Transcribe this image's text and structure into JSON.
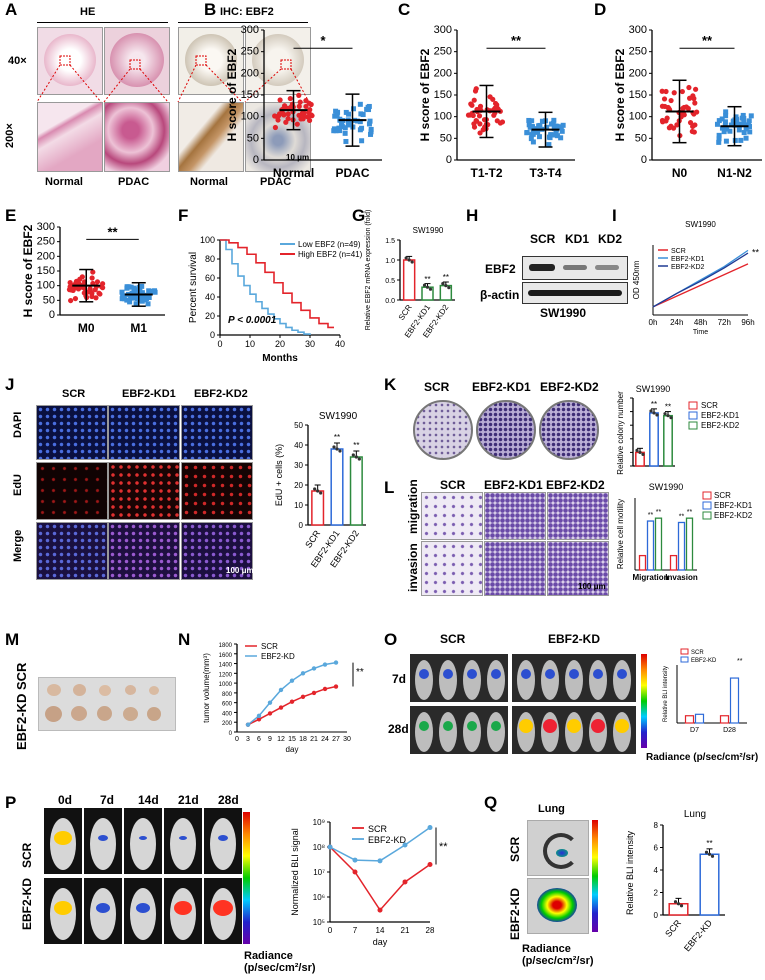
{
  "panels": {
    "A": {
      "letter": "A",
      "hdr_he": "HE",
      "hdr_ihc": "IHC: EBF2",
      "mag1": "40×",
      "mag2": "200×",
      "cols": [
        "Normal",
        "PDAC",
        "Normal",
        "PDAC"
      ],
      "scalebar": "10 μm"
    },
    "B": {
      "letter": "B",
      "ylabel": "H score of EBF2",
      "sig": "*",
      "yticks": [
        "0",
        "50",
        "100",
        "150",
        "200",
        "250",
        "300"
      ]
    },
    "C": {
      "letter": "C",
      "ylabel": "H score of EBF2",
      "sig": "**",
      "yticks": [
        "0",
        "50",
        "100",
        "150",
        "200",
        "250",
        "300"
      ]
    },
    "D": {
      "letter": "D",
      "ylabel": "H score of EBF2",
      "sig": "**",
      "yticks": [
        "0",
        "50",
        "100",
        "150",
        "200",
        "250",
        "300"
      ]
    },
    "E": {
      "letter": "E",
      "ylabel": "H score of EBF2",
      "sig": "**",
      "yticks": [
        "0",
        "50",
        "100",
        "150",
        "200",
        "250",
        "300"
      ]
    },
    "F": {
      "letter": "F",
      "ylabel": "Percent survival",
      "xlabel": "Months",
      "legend_low": "Low EBF2 (n=49)",
      "legend_high": "High EBF2 (n=41)",
      "pval": "P < 0.0001",
      "yticks": [
        "0",
        "20",
        "40",
        "60",
        "80",
        "100"
      ],
      "xticks": [
        "0",
        "10",
        "20",
        "30",
        "40"
      ]
    },
    "G": {
      "letter": "G",
      "title": "SW1990",
      "ylabel": "Relative EBF2 mRNA expression (fold)",
      "cats": [
        "SCR",
        "EBF2-KD1",
        "EBF2-KD2"
      ],
      "sig": "**",
      "yticks": [
        "0.0",
        "0.5",
        "1.0",
        "1.5"
      ]
    },
    "H": {
      "letter": "H",
      "lanes": [
        "SCR",
        "KD1",
        "KD2"
      ],
      "row1": "EBF2",
      "row2": "β-actin",
      "cell": "SW1990"
    },
    "I": {
      "letter": "I",
      "title": "SW1990",
      "ylabel": "OD 450nm",
      "xlabel": "Time",
      "xticks": [
        "0h",
        "24h",
        "48h",
        "72h",
        "96h"
      ],
      "legend": [
        "SCR",
        "EBF2-KD1",
        "EBF2-KD2"
      ],
      "sig": "**"
    },
    "J": {
      "letter": "J",
      "cols": [
        "SCR",
        "EBF2-KD1",
        "EBF2-KD2"
      ],
      "rows": [
        "DAPI",
        "EdU",
        "Merge"
      ],
      "scalebar": "100 μm",
      "title": "SW1990",
      "ylabel": "EdU + cells (%)",
      "sig": "**",
      "yticks": [
        "0",
        "10",
        "20",
        "30",
        "40",
        "50"
      ]
    },
    "K": {
      "letter": "K",
      "cols": [
        "SCR",
        "EBF2-KD1",
        "EBF2-KD2"
      ],
      "title": "SW1990",
      "ylabel": "Relative colony number",
      "legend": [
        "SCR",
        "EBF2-KD1",
        "EBF2-KD2"
      ],
      "sig": "**"
    },
    "L": {
      "letter": "L",
      "cols": [
        "SCR",
        "EBF2-KD1",
        "EBF2-KD2"
      ],
      "rows": [
        "migration",
        "invasion"
      ],
      "scalebar": "100 μm",
      "title": "SW1990",
      "ylabel": "Relative cell motility",
      "groups": [
        "Migration",
        "Invasion"
      ],
      "legend": [
        "SCR",
        "EBF2-KD1",
        "EBF2-KD2"
      ],
      "sig": "**"
    },
    "M": {
      "letter": "M",
      "side": "EBF2-KD SCR"
    },
    "N": {
      "letter": "N",
      "ylabel": "tumor volume(mm³)",
      "xlabel": "day",
      "legend": [
        "SCR",
        "EBF2-KD"
      ],
      "sig": "**",
      "xticks": [
        "0",
        "3",
        "6",
        "9",
        "12",
        "15",
        "18",
        "21",
        "24",
        "27",
        "30"
      ],
      "yticks": [
        "0",
        "200",
        "400",
        "600",
        "800",
        "1000",
        "1200",
        "1400",
        "1600",
        "1800"
      ]
    },
    "O": {
      "letter": "O",
      "cols": [
        "SCR",
        "EBF2-KD"
      ],
      "rows": [
        "7d",
        "28d"
      ],
      "radiance": "Radiance (p/sec/cm²/sr)",
      "ylabel": "Relative BLI intensity",
      "legend": [
        "SCR",
        "EBF2-KD"
      ],
      "sig": "**",
      "xticks": [
        "D7",
        "D28"
      ]
    },
    "P": {
      "letter": "P",
      "days": [
        "0d",
        "7d",
        "14d",
        "21d",
        "28d"
      ],
      "rows": [
        "SCR",
        "EBF2-KD"
      ],
      "radiance": "Radiance (p/sec/cm²/sr)",
      "ylabel": "Normalized BLI signal",
      "xlabel": "day",
      "legend": [
        "SCR",
        "EBF2-KD"
      ],
      "sig": "**",
      "xticks": [
        "0",
        "7",
        "14",
        "21",
        "28"
      ],
      "yticks": [
        "10⁵",
        "10⁶",
        "10⁷",
        "10⁸",
        "10⁹"
      ]
    },
    "Q": {
      "letter": "Q",
      "title": "Lung",
      "rows": [
        "SCR",
        "EBF2-KD"
      ],
      "radiance": "Radiance (p/sec/cm²/sr)",
      "chart_title": "Lung",
      "ylabel": "Relative BLI intensity",
      "cats": [
        "SCR",
        "EBF2-KD"
      ],
      "sig": "**",
      "yticks": [
        "0",
        "2",
        "4",
        "6",
        "8"
      ]
    }
  },
  "chart_data": [
    {
      "type": "scatter",
      "panel": "B",
      "categories": [
        "Normal",
        "PDAC"
      ],
      "mean": [
        115,
        92
      ],
      "sd": [
        45,
        60
      ],
      "ylim": [
        0,
        300
      ]
    },
    {
      "type": "scatter",
      "panel": "C",
      "categories": [
        "T1-T2",
        "T3-T4"
      ],
      "mean": [
        112,
        70
      ],
      "sd": [
        60,
        40
      ],
      "ylim": [
        0,
        300
      ]
    },
    {
      "type": "scatter",
      "panel": "D",
      "categories": [
        "N0",
        "N1-N2"
      ],
      "mean": [
        112,
        78
      ],
      "sd": [
        72,
        45
      ],
      "ylim": [
        0,
        300
      ]
    },
    {
      "type": "scatter",
      "panel": "E",
      "categories": [
        "M0",
        "M1"
      ],
      "mean": [
        100,
        70
      ],
      "sd": [
        55,
        40
      ],
      "ylim": [
        0,
        300
      ]
    },
    {
      "type": "line",
      "panel": "F",
      "series": [
        {
          "name": "Low EBF2 (n=49)",
          "x": [
            0,
            2,
            4,
            6,
            8,
            10,
            12,
            14,
            16,
            18,
            20,
            22,
            24,
            26,
            28,
            30
          ],
          "y": [
            100,
            90,
            75,
            62,
            52,
            43,
            35,
            28,
            22,
            17,
            12,
            8,
            5,
            3,
            1,
            0
          ]
        },
        {
          "name": "High EBF2 (n=41)",
          "x": [
            0,
            3,
            6,
            9,
            12,
            15,
            18,
            21,
            24,
            27,
            30,
            33,
            36,
            38
          ],
          "y": [
            100,
            97,
            92,
            85,
            76,
            66,
            55,
            44,
            34,
            26,
            18,
            12,
            8,
            8
          ]
        }
      ],
      "xlim": [
        0,
        40
      ],
      "ylim": [
        0,
        100
      ]
    },
    {
      "type": "bar",
      "panel": "G",
      "categories": [
        "SCR",
        "EBF2-KD1",
        "EBF2-KD2"
      ],
      "values": [
        1.0,
        0.32,
        0.36
      ],
      "ylim": [
        0,
        1.5
      ]
    },
    {
      "type": "line",
      "panel": "I",
      "categories": [
        "0h",
        "24h",
        "48h",
        "72h",
        "96h"
      ],
      "series": [
        {
          "name": "SCR",
          "values": [
            0.3,
            0.7,
            1.1,
            1.5,
            1.9
          ]
        },
        {
          "name": "EBF2-KD1",
          "values": [
            0.3,
            0.8,
            1.3,
            1.8,
            2.4
          ]
        },
        {
          "name": "EBF2-KD2",
          "values": [
            0.3,
            0.8,
            1.25,
            1.75,
            2.3
          ]
        }
      ]
    },
    {
      "type": "bar",
      "panel": "J",
      "categories": [
        "SCR",
        "EBF2-KD1",
        "EBF2-KD2"
      ],
      "values": [
        17,
        38,
        34
      ],
      "ylim": [
        0,
        50
      ]
    },
    {
      "type": "bar",
      "panel": "K",
      "categories": [
        "SCR",
        "EBF2-KD1",
        "EBF2-KD2"
      ],
      "values": [
        1.0,
        3.9,
        3.7
      ],
      "ylim": [
        0,
        5
      ]
    },
    {
      "type": "bar",
      "panel": "L",
      "categories": [
        "Migration",
        "Invasion"
      ],
      "series": [
        {
          "name": "SCR",
          "values": [
            1.0,
            1.0
          ]
        },
        {
          "name": "EBF2-KD1",
          "values": [
            3.4,
            3.3
          ]
        },
        {
          "name": "EBF2-KD2",
          "values": [
            3.6,
            3.6
          ]
        }
      ],
      "ylim": [
        0,
        5
      ]
    },
    {
      "type": "line",
      "panel": "N",
      "series": [
        {
          "name": "SCR",
          "x": [
            3,
            6,
            9,
            12,
            15,
            18,
            21,
            24,
            27
          ],
          "y": [
            150,
            260,
            380,
            500,
            620,
            720,
            800,
            880,
            930
          ]
        },
        {
          "name": "EBF2-KD",
          "x": [
            3,
            6,
            9,
            12,
            15,
            18,
            21,
            24,
            27
          ],
          "y": [
            150,
            330,
            600,
            860,
            1050,
            1200,
            1300,
            1380,
            1420
          ]
        }
      ],
      "xlim": [
        0,
        30
      ],
      "ylim": [
        0,
        1800
      ]
    },
    {
      "type": "bar",
      "panel": "O",
      "categories": [
        "D7",
        "D28"
      ],
      "series": [
        {
          "name": "SCR",
          "values": [
            1.0,
            1.0
          ]
        },
        {
          "name": "EBF2-KD",
          "values": [
            1.2,
            6.2
          ]
        }
      ],
      "ylim": [
        0,
        8
      ]
    },
    {
      "type": "line",
      "panel": "P",
      "series": [
        {
          "name": "SCR",
          "x": [
            0,
            7,
            14,
            21,
            28
          ],
          "y": [
            100000000.0,
            10000000.0,
            300000.0,
            4000000.0,
            20000000.0
          ]
        },
        {
          "name": "EBF2-KD",
          "x": [
            0,
            7,
            14,
            21,
            28
          ],
          "y": [
            100000000.0,
            30000000.0,
            28000000.0,
            120000000.0,
            600000000.0
          ]
        }
      ],
      "ylim": [
        100000.0,
        1000000000.0
      ]
    },
    {
      "type": "bar",
      "panel": "Q",
      "categories": [
        "SCR",
        "EBF2-KD"
      ],
      "values": [
        1.0,
        5.4
      ],
      "ylim": [
        0,
        8
      ]
    }
  ]
}
